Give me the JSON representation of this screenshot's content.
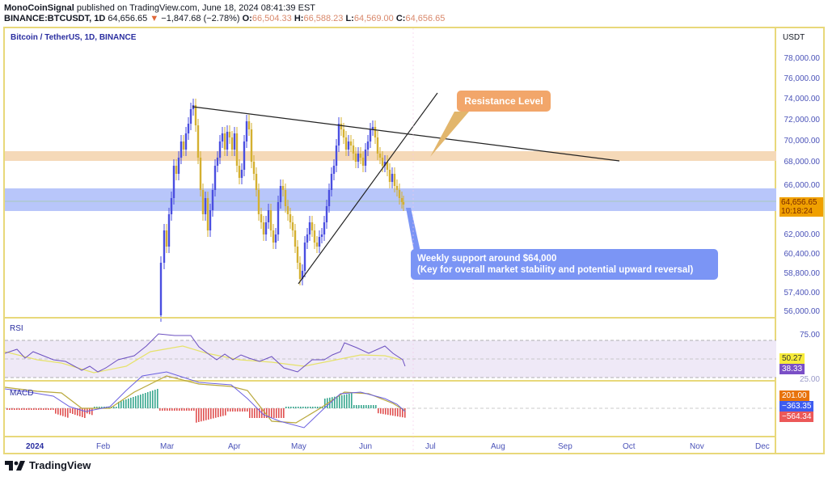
{
  "header": {
    "author": "MonoCoinSignal",
    "published_text": "published on TradingView.com, June 18, 2024 08:41:39 EST",
    "symbol": "BINANCE:BTCUSDT, 1D",
    "last_price": "64,656.65",
    "change_arrow": "▼",
    "change": "−1,847.68 (−2.78%)",
    "open_label": "O:",
    "open": "66,504.33",
    "high_label": "H:",
    "high": "66,588.23",
    "low_label": "L:",
    "low": "64,569.00",
    "close_label": "C:",
    "close": "64,656.65"
  },
  "chart": {
    "title": "Bitcoin / TetherUS, 1D, BINANCE",
    "currency": "USDT",
    "price_axis": [
      "78,000.00",
      "76,000.00",
      "74,000.00",
      "72,000.00",
      "70,000.00",
      "68,000.00",
      "66,000.00",
      "62,000.00",
      "60,400.00",
      "58,800.00",
      "57,400.00",
      "56,000.00"
    ],
    "current_price_tag": "64,656.65",
    "countdown": "10:18:24",
    "time_axis": [
      "2024",
      "Feb",
      "Mar",
      "Apr",
      "May",
      "Jun",
      "Jul",
      "Aug",
      "Sep",
      "Oct",
      "Nov",
      "Dec"
    ],
    "colors": {
      "up": "#4a4ee0",
      "down": "#d4b030",
      "resistance_zone": "#f5d9b8",
      "support_zone": "#b8c6fa",
      "frame": "#e8d87a"
    }
  },
  "annotations": {
    "resistance": "Resistance Level",
    "support_line1": "Weekly support around $64,000",
    "support_line2": "(Key for overall market stability and potential upward reversal)"
  },
  "rsi": {
    "label": "RSI",
    "axis": [
      "75.00",
      "25.00"
    ],
    "value_ma": "50.27",
    "value_rsi": "38.33"
  },
  "macd": {
    "label": "MACD",
    "value_signal": "201.00",
    "value_macd": "−363.35",
    "value_hist": "−564.34"
  },
  "footer": {
    "brand": "TradingView"
  },
  "chart_data": {
    "type": "candlestick",
    "title": "Bitcoin / TetherUS, 1D, BINANCE",
    "xlabel": "",
    "ylabel": "USDT",
    "x": [
      "2024-02-28",
      "2024-03-14",
      "2024-04-08",
      "2024-05-01",
      "2024-05-21",
      "2024-06-07",
      "2024-06-18"
    ],
    "approx_close": [
      62000,
      73500,
      71500,
      57000,
      70500,
      71500,
      64656.65
    ],
    "ylim": [
      55000,
      80000
    ],
    "last": {
      "open": 66504.33,
      "high": 66588.23,
      "low": 64569.0,
      "close": 64656.65,
      "change": -1847.68,
      "change_pct": -2.78
    },
    "zones": [
      {
        "name": "Resistance Level",
        "from": 68500,
        "to": 69300
      },
      {
        "name": "Weekly support",
        "from": 64000,
        "to": 66000
      }
    ],
    "trendlines": [
      {
        "name": "descending resistance",
        "from": [
          "2024-03-14",
          73800
        ],
        "to": [
          "2024-09-20",
          68300
        ]
      },
      {
        "name": "ascending support",
        "from": [
          "2024-05-01",
          58000
        ],
        "to": [
          "2024-06-22",
          76000
        ]
      }
    ],
    "indicators": {
      "RSI": 38.33,
      "RSI_MA": 50.27,
      "MACD": -363.35,
      "Signal": 201.0,
      "Histogram": -564.34
    }
  }
}
